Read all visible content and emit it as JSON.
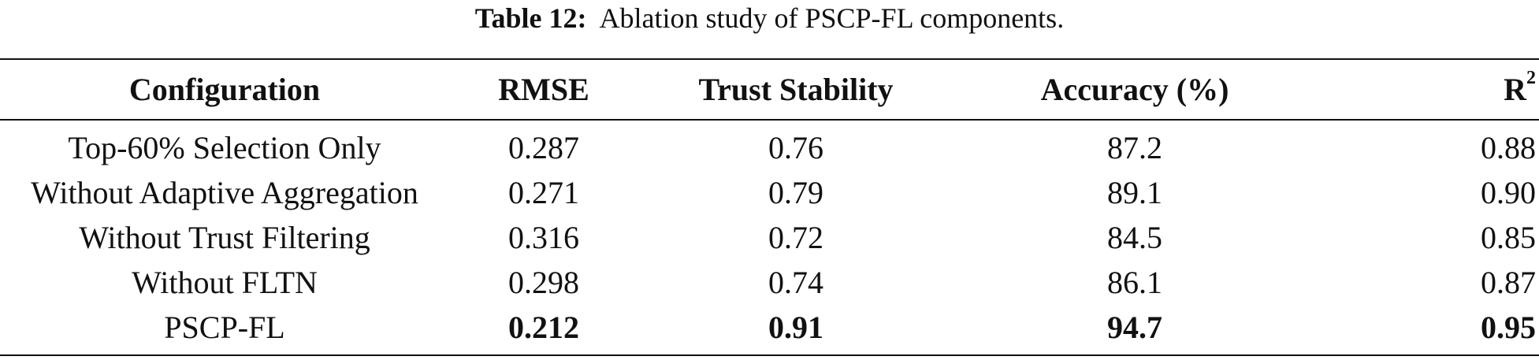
{
  "caption": {
    "label": "Table 12:",
    "text": "Ablation study of PSCP-FL components."
  },
  "table": {
    "headers": {
      "configuration": "Configuration",
      "rmse": "RMSE",
      "trust_stability": "Trust Stability",
      "accuracy": "Accuracy (%)",
      "r2_base": "R",
      "r2_sup": "2"
    },
    "rows": [
      {
        "configuration": "Top-60% Selection Only",
        "rmse": "0.287",
        "trust_stability": "0.76",
        "accuracy": "87.2",
        "r2": "0.88"
      },
      {
        "configuration": "Without Adaptive Aggregation",
        "rmse": "0.271",
        "trust_stability": "0.79",
        "accuracy": "89.1",
        "r2": "0.90"
      },
      {
        "configuration": "Without Trust Filtering",
        "rmse": "0.316",
        "trust_stability": "0.72",
        "accuracy": "84.5",
        "r2": "0.85"
      },
      {
        "configuration": "Without FLTN",
        "rmse": "0.298",
        "trust_stability": "0.74",
        "accuracy": "86.1",
        "r2": "0.87"
      },
      {
        "configuration": "PSCP-FL",
        "rmse": "0.212",
        "trust_stability": "0.91",
        "accuracy": "94.7",
        "r2": "0.95"
      }
    ]
  }
}
